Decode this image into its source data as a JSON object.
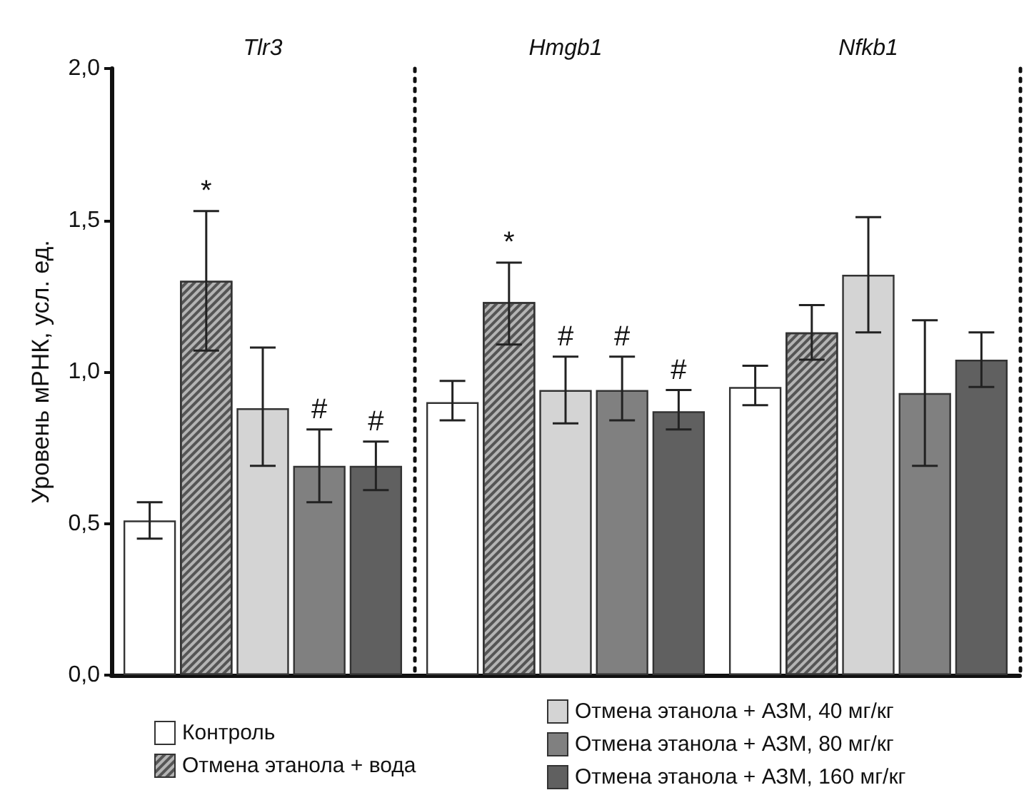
{
  "chart_data": {
    "type": "bar",
    "ylabel": "Уровень мРНК, усл. ед.",
    "categories": [
      "Tlr3",
      "Hmgb1",
      "Nfkb1"
    ],
    "series": [
      {
        "name": "Контроль",
        "color": "#ffffff",
        "values": [
          0.51,
          0.9,
          0.95
        ],
        "errors": [
          [
            0.45,
            0.57
          ],
          [
            0.84,
            0.97
          ],
          [
            0.89,
            1.02
          ]
        ]
      },
      {
        "name": "Отмена этанола + вода",
        "color": "#b4b4b4",
        "values": [
          1.3,
          1.23,
          1.13
        ],
        "errors": [
          [
            1.07,
            1.53
          ],
          [
            1.09,
            1.36
          ],
          [
            1.04,
            1.22
          ]
        ],
        "value_labels": [
          "*",
          "*",
          null
        ]
      },
      {
        "name": "Отмена этанола + АЗМ, 40 мг/кг",
        "color": "#d4d4d4",
        "values": [
          0.88,
          0.94,
          1.32
        ],
        "errors": [
          [
            0.69,
            1.08
          ],
          [
            0.83,
            1.05
          ],
          [
            1.13,
            1.51
          ]
        ],
        "value_labels": [
          null,
          "#",
          null
        ]
      },
      {
        "name": "Отмена этанола + АЗМ, 80 мг/кг",
        "color": "#808080",
        "values": [
          0.69,
          0.94,
          0.93
        ],
        "errors": [
          [
            0.57,
            0.81
          ],
          [
            0.84,
            1.05
          ],
          [
            0.69,
            1.17
          ]
        ],
        "value_labels": [
          "#",
          "#",
          null
        ]
      },
      {
        "name": "Отмена этанола + АЗМ, 160 мг/кг",
        "color": "#606060",
        "values": [
          0.69,
          0.87,
          1.04
        ],
        "errors": [
          [
            0.61,
            0.77
          ],
          [
            0.81,
            0.94
          ],
          [
            0.95,
            1.13
          ]
        ],
        "value_labels": [
          "#",
          "#",
          null
        ]
      }
    ],
    "ylim": [
      0,
      2
    ],
    "yticks": [
      {
        "value": 0,
        "label": "0,0"
      },
      {
        "value": 0.5,
        "label": "0,5"
      },
      {
        "value": 1,
        "label": "1,0"
      },
      {
        "value": 1.5,
        "label": "1,5"
      },
      {
        "value": 2,
        "label": "2,0"
      }
    ],
    "grid": "x",
    "legend": "bottom"
  }
}
